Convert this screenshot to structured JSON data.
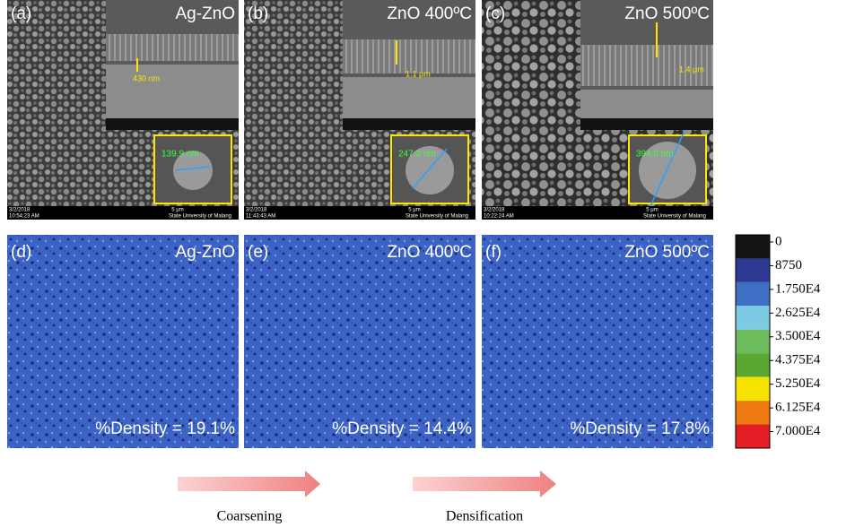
{
  "panels": [
    {
      "label": "(a)",
      "title": "Ag-ZnO",
      "thickness": "430 nm",
      "grain_size": "139.9 nm",
      "date": "3/2/2018",
      "time": "10:54:23 AM",
      "scale": "5 μm",
      "institution": "State University of Malang"
    },
    {
      "label": "(b)",
      "title": "ZnO 400ºC",
      "thickness": "1.1 μm",
      "grain_size": "247.3 nm",
      "date": "3/2/2018",
      "time": "11:43:43 AM",
      "scale": "5 μm",
      "institution": "State University of Malang"
    },
    {
      "label": "(c)",
      "title": "ZnO 500ºC",
      "thickness": "1.4 μm",
      "grain_size": "394.0 nm",
      "date": "3/2/2018",
      "time": "10:22:24 AM",
      "scale": "5 μm",
      "institution": "State University of Malang"
    }
  ],
  "maps": [
    {
      "label": "(d)",
      "title": "Ag-ZnO",
      "density": "%Density = 19.1%"
    },
    {
      "label": "(e)",
      "title": "ZnO 400ºC",
      "density": "%Density = 14.4%"
    },
    {
      "label": "(f)",
      "title": "ZnO 500ºC",
      "density": "%Density = 17.8%"
    }
  ],
  "colorbar": {
    "labels": [
      "0",
      "8750",
      "1.750E4",
      "2.625E4",
      "3.500E4",
      "4.375E4",
      "5.250E4",
      "6.125E4",
      "7.000E4"
    ],
    "colors": [
      "#141414",
      "#2c3a94",
      "#3f6fc4",
      "#7ccbe2",
      "#6cbc5c",
      "#5aa832",
      "#f6e400",
      "#ef7a12",
      "#e31e24"
    ]
  },
  "arrows": [
    "Coarsening",
    "Densification"
  ]
}
